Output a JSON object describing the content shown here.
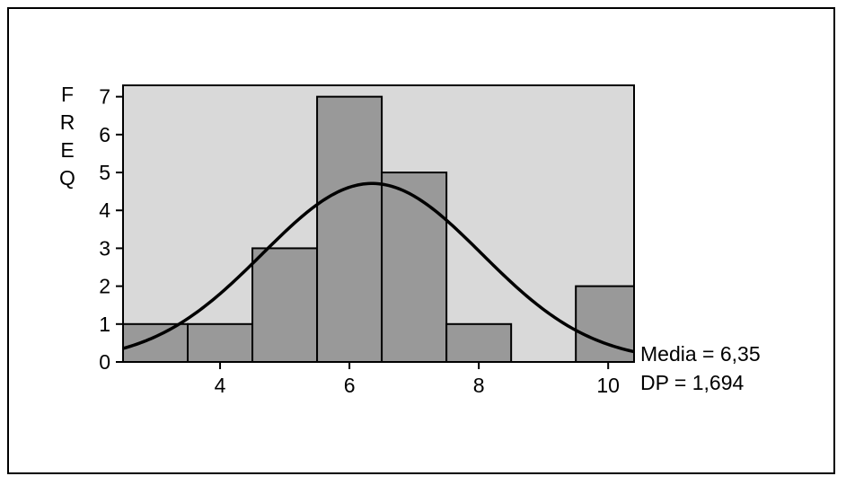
{
  "chart_data": {
    "type": "bar",
    "ylabel_letters": [
      "F",
      "R",
      "E",
      "Q"
    ],
    "x_ticks": [
      4,
      6,
      8,
      10
    ],
    "y_ticks": [
      0,
      1,
      2,
      3,
      4,
      5,
      6,
      7
    ],
    "xlim": [
      2.5,
      10.4
    ],
    "ylim": [
      0,
      7.3
    ],
    "bins": [
      {
        "center": 3,
        "width": 1,
        "value": 1
      },
      {
        "center": 4,
        "width": 1,
        "value": 1
      },
      {
        "center": 5,
        "width": 1,
        "value": 3
      },
      {
        "center": 6,
        "width": 1,
        "value": 7
      },
      {
        "center": 7,
        "width": 1,
        "value": 5
      },
      {
        "center": 8,
        "width": 1,
        "value": 1
      },
      {
        "center": 9,
        "width": 1,
        "value": 0
      },
      {
        "center": 10,
        "width": 1,
        "value": 2
      }
    ],
    "normal_curve": {
      "mean": 6.35,
      "sd": 1.694,
      "n": 20,
      "bin_width": 1
    },
    "stats": {
      "mean_text": "Media = 6,35",
      "sd_text": "DP = 1,694"
    },
    "grid": false,
    "colors": {
      "plot_bg": "#d9d9d9",
      "bar_fill": "#999999",
      "bar_edge": "#000000",
      "curve": "#000000"
    }
  }
}
